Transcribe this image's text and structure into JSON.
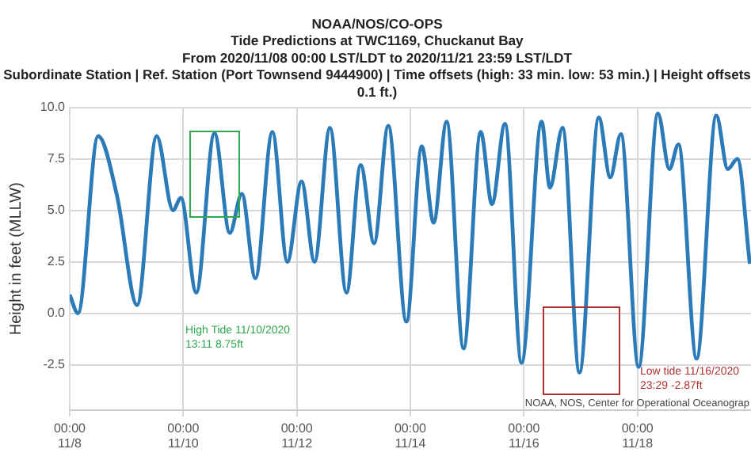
{
  "chart_data": {
    "type": "line",
    "title": "NOAA/NOS/CO-OPS",
    "subtitle": "Tide Predictions at TWC1169, Chuckanut Bay\nFrom 2020/11/08 00:00 LST/LDT to 2020/11/21 23:59 LST/LDT\nSubordinate Station | Ref. Station (Port Townsend 9444900) | Time offsets (high: 33 min. low: 53 min.) | Height offsets\n0.1 ft.)",
    "ylabel": "Height in feet (MLLW)",
    "x": [
      "2020-11-08T00:00",
      "2020-11-08T03:30",
      "2020-11-08T12:00",
      "2020-11-08T20:00",
      "2020-11-09T04:30",
      "2020-11-09T12:45",
      "2020-11-09T19:40",
      "2020-11-09T23:00",
      "2020-11-10T05:30",
      "2020-11-10T13:11",
      "2020-11-10T19:40",
      "2020-11-11T00:45",
      "2020-11-11T06:30",
      "2020-11-11T13:40",
      "2020-11-11T20:00",
      "2020-11-12T02:00",
      "2020-11-12T07:30",
      "2020-11-12T14:00",
      "2020-11-12T21:00",
      "2020-11-13T03:00",
      "2020-11-13T08:40",
      "2020-11-13T14:40",
      "2020-11-13T22:20",
      "2020-11-14T04:50",
      "2020-11-14T09:50",
      "2020-11-14T15:20",
      "2020-11-14T22:30",
      "2020-11-15T05:45",
      "2020-11-15T10:30",
      "2020-11-15T16:00",
      "2020-11-15T23:00",
      "2020-11-16T07:30",
      "2020-11-16T11:00",
      "2020-11-16T16:20",
      "2020-11-16T23:29",
      "2020-11-17T07:40",
      "2020-11-17T12:30",
      "2020-11-17T17:00",
      "2020-11-18T00:30",
      "2020-11-18T08:40",
      "2020-11-18T13:30",
      "2020-11-18T17:20",
      "2020-11-19T01:00",
      "2020-11-19T09:20",
      "2020-11-19T14:10",
      "2020-11-19T18:15",
      "2020-11-19T23:30"
    ],
    "series": [
      {
        "color": "#2b7bb9",
        "values": [
          0.9,
          0.0,
          8.6,
          5.7,
          0.4,
          8.6,
          5.0,
          5.6,
          1.0,
          8.75,
          3.9,
          5.8,
          1.7,
          8.8,
          2.5,
          6.4,
          2.5,
          9.0,
          1.0,
          7.2,
          3.4,
          9.1,
          -0.4,
          8.1,
          4.4,
          9.3,
          -1.7,
          8.8,
          5.3,
          9.2,
          -2.4,
          9.3,
          6.1,
          9.0,
          -2.87,
          9.5,
          6.6,
          8.7,
          -2.6,
          9.7,
          7.0,
          8.2,
          -2.2,
          9.6,
          7.0,
          7.5,
          2.4
        ]
      }
    ],
    "xlim": [
      "2020-11-08T00:00",
      "2020-11-20T00:00"
    ],
    "xticks": [
      {
        "value": "2020-11-08T00:00",
        "label": "00:00\n11/8"
      },
      {
        "value": "2020-11-10T00:00",
        "label": "00:00\n11/10"
      },
      {
        "value": "2020-11-12T00:00",
        "label": "00:00\n11/12"
      },
      {
        "value": "2020-11-14T00:00",
        "label": "00:00\n11/14"
      },
      {
        "value": "2020-11-16T00:00",
        "label": "00:00\n11/16"
      },
      {
        "value": "2020-11-18T00:00",
        "label": "00:00\n11/18"
      }
    ],
    "ylim": [
      -4.7,
      10
    ],
    "yticks": [
      {
        "value": -2.5,
        "label": "-2.5"
      },
      {
        "value": 0,
        "label": "0.0"
      },
      {
        "value": 2.5,
        "label": "2.5"
      },
      {
        "value": 5,
        "label": "5.0"
      },
      {
        "value": 7.5,
        "label": "7.5"
      },
      {
        "value": 10,
        "label": "10.0"
      }
    ],
    "grid": true,
    "legend": false,
    "marker": "none",
    "line_style": "solid",
    "annotations": [
      "High Tide 11/10/2020\n13:11 8.75ft",
      "Low tide 11/16/2020\n23:29 -2.87ft",
      "NOAA, NOS, Center for Operational Oceanograp"
    ]
  }
}
